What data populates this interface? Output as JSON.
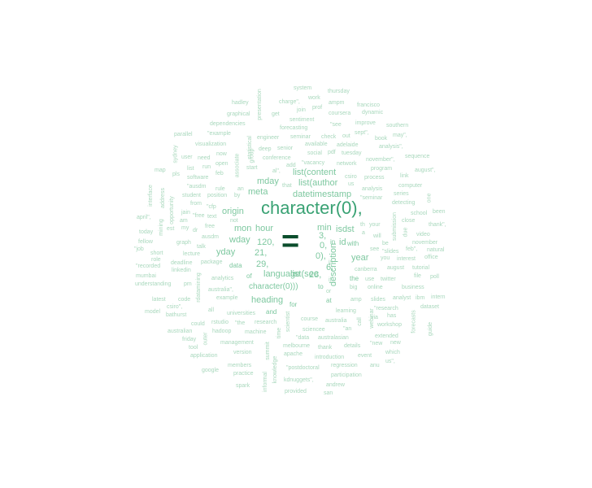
{
  "palette": {
    "background": "#ffffff",
    "small": "#a9d8bd",
    "mid": "#7ec8a0",
    "large": "#3aa274",
    "dark": "#0b4d2c"
  },
  "words": [
    {
      "text": "character(0),",
      "tier": "huge"
    },
    {
      "text": "=",
      "tier": "eq"
    },
    {
      "text": "list(content",
      "tier": "large"
    },
    {
      "text": "list(author",
      "tier": "large"
    },
    {
      "text": "datetimestamp",
      "tier": "large"
    },
    {
      "text": "mday",
      "tier": "large"
    },
    {
      "text": "meta",
      "tier": "large"
    },
    {
      "text": "origin",
      "tier": "large"
    },
    {
      "text": "mon",
      "tier": "large"
    },
    {
      "text": "hour",
      "tier": "large"
    },
    {
      "text": "wday",
      "tier": "large"
    },
    {
      "text": "yday",
      "tier": "large"
    },
    {
      "text": "120,",
      "tier": "large"
    },
    {
      "text": "21,",
      "tier": "large"
    },
    {
      "text": "29,",
      "tier": "large"
    },
    {
      "text": "language",
      "tier": "large"
    },
    {
      "text": "list(sec",
      "tier": "large"
    },
    {
      "text": "character(0)))",
      "tier": "large"
    },
    {
      "text": "heading",
      "tier": "large"
    },
    {
      "text": "min",
      "tier": "large"
    },
    {
      "text": "isdst",
      "tier": "large"
    },
    {
      "text": "description",
      "tier": "large"
    },
    {
      "text": "year",
      "tier": "large"
    },
    {
      "text": "28,",
      "tier": "large"
    },
    {
      "text": "3,",
      "tier": "large"
    },
    {
      "text": "0,",
      "tier": "large"
    },
    {
      "text": "0),",
      "tier": "large"
    },
    {
      "text": "6,",
      "tier": "large"
    },
    {
      "text": "id",
      "tier": "large"
    },
    {
      "text": "system",
      "tier": "small"
    },
    {
      "text": "thursday",
      "tier": "small"
    },
    {
      "text": "work",
      "tier": "small"
    },
    {
      "text": "ampm",
      "tier": "small"
    },
    {
      "text": "presentation",
      "tier": "small"
    },
    {
      "text": "hadley",
      "tier": "small"
    },
    {
      "text": "charge\",",
      "tier": "small"
    },
    {
      "text": "prof",
      "tier": "small"
    },
    {
      "text": "francisco",
      "tier": "small"
    },
    {
      "text": "graphical",
      "tier": "small"
    },
    {
      "text": "get",
      "tier": "small"
    },
    {
      "text": "join",
      "tier": "small"
    },
    {
      "text": "coursera",
      "tier": "small"
    },
    {
      "text": "dynamic",
      "tier": "small"
    },
    {
      "text": "dependencies",
      "tier": "small"
    },
    {
      "text": "sentiment",
      "tier": "small"
    },
    {
      "text": "forecasting",
      "tier": "small"
    },
    {
      "text": "\"see",
      "tier": "small"
    },
    {
      "text": "improve",
      "tier": "small"
    },
    {
      "text": "southern",
      "tier": "small"
    },
    {
      "text": "parallel",
      "tier": "small"
    },
    {
      "text": "\"example",
      "tier": "small"
    },
    {
      "text": "seminar",
      "tier": "small"
    },
    {
      "text": "check",
      "tier": "small"
    },
    {
      "text": "out",
      "tier": "small"
    },
    {
      "text": "sept\",",
      "tier": "small"
    },
    {
      "text": "book",
      "tier": "small"
    },
    {
      "text": "may\",",
      "tier": "small"
    },
    {
      "text": "visualization",
      "tier": "small"
    },
    {
      "text": "engineer",
      "tier": "small"
    },
    {
      "text": "available",
      "tier": "small"
    },
    {
      "text": "adelaide",
      "tier": "small"
    },
    {
      "text": "analysis\",",
      "tier": "small"
    },
    {
      "text": "sydney",
      "tier": "small"
    },
    {
      "text": "now",
      "tier": "small"
    },
    {
      "text": "deep",
      "tier": "small"
    },
    {
      "text": "senior",
      "tier": "small"
    },
    {
      "text": "social",
      "tier": "small"
    },
    {
      "text": "pdf",
      "tier": "small"
    },
    {
      "text": "tuesday",
      "tier": "small"
    },
    {
      "text": "user",
      "tier": "small"
    },
    {
      "text": "need",
      "tier": "small"
    },
    {
      "text": "conference",
      "tier": "small"
    },
    {
      "text": "november\",",
      "tier": "small"
    },
    {
      "text": "sequence",
      "tier": "small"
    },
    {
      "text": "statistical",
      "tier": "small"
    },
    {
      "text": "open",
      "tier": "small"
    },
    {
      "text": "add",
      "tier": "small"
    },
    {
      "text": "\"vacancy",
      "tier": "small"
    },
    {
      "text": "network",
      "tier": "small"
    },
    {
      "text": "program",
      "tier": "small"
    },
    {
      "text": "list",
      "tier": "small"
    },
    {
      "text": "run",
      "tier": "small"
    },
    {
      "text": "start",
      "tier": "small"
    },
    {
      "text": "al\",",
      "tier": "small"
    },
    {
      "text": "map",
      "tier": "small"
    },
    {
      "text": "associate",
      "tier": "small"
    },
    {
      "text": "august\",",
      "tier": "small"
    },
    {
      "text": "link",
      "tier": "small"
    },
    {
      "text": "pls",
      "tier": "small"
    },
    {
      "text": "software",
      "tier": "small"
    },
    {
      "text": "feb",
      "tier": "small"
    },
    {
      "text": "csiro",
      "tier": "small"
    },
    {
      "text": "process",
      "tier": "small"
    },
    {
      "text": "computer",
      "tier": "small"
    },
    {
      "text": "\"ausdm",
      "tier": "small"
    },
    {
      "text": "rule",
      "tier": "small"
    },
    {
      "text": "an",
      "tier": "small"
    },
    {
      "text": "that",
      "tier": "small"
    },
    {
      "text": "us",
      "tier": "small"
    },
    {
      "text": "analysis",
      "tier": "small"
    },
    {
      "text": "interface",
      "tier": "small"
    },
    {
      "text": "student",
      "tier": "small"
    },
    {
      "text": "position",
      "tier": "small"
    },
    {
      "text": "by",
      "tier": "small"
    },
    {
      "text": "series",
      "tier": "small"
    },
    {
      "text": "\"seminar",
      "tier": "small"
    },
    {
      "text": "address",
      "tier": "small"
    },
    {
      "text": "from",
      "tier": "small"
    },
    {
      "text": "\"cfp",
      "tier": "small"
    },
    {
      "text": "opportunity",
      "tier": "small"
    },
    {
      "text": "detecting",
      "tier": "small"
    },
    {
      "text": "jain",
      "tier": "small"
    },
    {
      "text": "\"free",
      "tier": "small"
    },
    {
      "text": "text",
      "tier": "small"
    },
    {
      "text": "april\",",
      "tier": "small"
    },
    {
      "text": "am",
      "tier": "small"
    },
    {
      "text": "school",
      "tier": "small"
    },
    {
      "text": "been",
      "tier": "small"
    },
    {
      "text": "free",
      "tier": "small"
    },
    {
      "text": "not",
      "tier": "small"
    },
    {
      "text": "close",
      "tier": "small"
    },
    {
      "text": "thank\",",
      "tier": "small"
    },
    {
      "text": "mining",
      "tier": "small"
    },
    {
      "text": "est",
      "tier": "small"
    },
    {
      "text": "my",
      "tier": "small"
    },
    {
      "text": "dr",
      "tier": "small"
    },
    {
      "text": "today",
      "tier": "small"
    },
    {
      "text": "will",
      "tier": "small"
    },
    {
      "text": "video",
      "tier": "small"
    },
    {
      "text": "ausdm",
      "tier": "small"
    },
    {
      "text": "graph",
      "tier": "small"
    },
    {
      "text": "fellow",
      "tier": "small"
    },
    {
      "text": "talk",
      "tier": "small"
    },
    {
      "text": "november",
      "tier": "small"
    },
    {
      "text": "\"job",
      "tier": "small"
    },
    {
      "text": "short",
      "tier": "small"
    },
    {
      "text": "lecture",
      "tier": "small"
    },
    {
      "text": "feb\",",
      "tier": "small"
    },
    {
      "text": "be",
      "tier": "small"
    },
    {
      "text": "\"slides",
      "tier": "small"
    },
    {
      "text": "natural",
      "tier": "small"
    },
    {
      "text": "role",
      "tier": "small"
    },
    {
      "text": "deadline",
      "tier": "small"
    },
    {
      "text": "package",
      "tier": "small"
    },
    {
      "text": "you",
      "tier": "small"
    },
    {
      "text": "interest",
      "tier": "small"
    },
    {
      "text": "office",
      "tier": "small"
    },
    {
      "text": "\"recorded",
      "tier": "small"
    },
    {
      "text": "linkedin",
      "tier": "small"
    },
    {
      "text": "canberra",
      "tier": "small"
    },
    {
      "text": "august",
      "tier": "small"
    },
    {
      "text": "tutorial",
      "tier": "small"
    },
    {
      "text": "mumbai",
      "tier": "small"
    },
    {
      "text": "file",
      "tier": "small"
    },
    {
      "text": "poll",
      "tier": "small"
    },
    {
      "text": "analytics",
      "tier": "small"
    },
    {
      "text": "use",
      "tier": "small"
    },
    {
      "text": "twitter",
      "tier": "small"
    },
    {
      "text": "understanding",
      "tier": "small"
    },
    {
      "text": "pm",
      "tier": "small"
    },
    {
      "text": "australia\",",
      "tier": "small"
    },
    {
      "text": "big",
      "tier": "small"
    },
    {
      "text": "online",
      "tier": "small"
    },
    {
      "text": "business",
      "tier": "small"
    },
    {
      "text": "latest",
      "tier": "small"
    },
    {
      "text": "code",
      "tier": "small"
    },
    {
      "text": "example",
      "tier": "small"
    },
    {
      "text": "amp",
      "tier": "small"
    },
    {
      "text": "slides",
      "tier": "small"
    },
    {
      "text": "analyst",
      "tier": "small"
    },
    {
      "text": "ibm",
      "tier": "small"
    },
    {
      "text": "intern",
      "tier": "small"
    },
    {
      "text": "csiro\",",
      "tier": "small"
    },
    {
      "text": "model",
      "tier": "small"
    },
    {
      "text": "all",
      "tier": "small"
    },
    {
      "text": "universities",
      "tier": "small"
    },
    {
      "text": "\"research",
      "tier": "small"
    },
    {
      "text": "dataset",
      "tier": "small"
    },
    {
      "text": "bathurst",
      "tier": "small"
    },
    {
      "text": "course",
      "tier": "small"
    },
    {
      "text": "learning",
      "tier": "small"
    },
    {
      "text": "has",
      "tier": "small"
    },
    {
      "text": "could",
      "tier": "small"
    },
    {
      "text": "rstudio",
      "tier": "small"
    },
    {
      "text": "\"the",
      "tier": "small"
    },
    {
      "text": "research",
      "tier": "small"
    },
    {
      "text": "australia",
      "tier": "small"
    },
    {
      "text": "via",
      "tier": "small"
    },
    {
      "text": "workshop",
      "tier": "small"
    },
    {
      "text": "australian",
      "tier": "small"
    },
    {
      "text": "hadoop",
      "tier": "small"
    },
    {
      "text": "machine",
      "tier": "small"
    },
    {
      "text": "sciencee",
      "tier": "small"
    },
    {
      "text": "\"an",
      "tier": "small"
    },
    {
      "text": "friday",
      "tier": "small"
    },
    {
      "text": "\"data",
      "tier": "small"
    },
    {
      "text": "australasian",
      "tier": "small"
    },
    {
      "text": "extended",
      "tier": "small"
    },
    {
      "text": "tool",
      "tier": "small"
    },
    {
      "text": "management",
      "tier": "small"
    },
    {
      "text": "melbourne",
      "tier": "small"
    },
    {
      "text": "thank",
      "tier": "small"
    },
    {
      "text": "details",
      "tier": "small"
    },
    {
      "text": "\"new",
      "tier": "small"
    },
    {
      "text": "new",
      "tier": "small"
    },
    {
      "text": "application",
      "tier": "small"
    },
    {
      "text": "version",
      "tier": "small"
    },
    {
      "text": "apache",
      "tier": "small"
    },
    {
      "text": "introduction",
      "tier": "small"
    },
    {
      "text": "event",
      "tier": "small"
    },
    {
      "text": "which",
      "tier": "small"
    },
    {
      "text": "members",
      "tier": "small"
    },
    {
      "text": "\"postdoctoral",
      "tier": "small"
    },
    {
      "text": "regression",
      "tier": "small"
    },
    {
      "text": "anu",
      "tier": "small"
    },
    {
      "text": "us\",",
      "tier": "small"
    },
    {
      "text": "google",
      "tier": "small"
    },
    {
      "text": "practice",
      "tier": "small"
    },
    {
      "text": "participation",
      "tier": "small"
    },
    {
      "text": "kdnuggets\",",
      "tier": "small"
    },
    {
      "text": "spark",
      "tier": "small"
    },
    {
      "text": "andrew",
      "tier": "small"
    },
    {
      "text": "provided",
      "tier": "small"
    },
    {
      "text": "san",
      "tier": "small"
    },
    {
      "text": "with",
      "tier": "small"
    },
    {
      "text": "in",
      "tier": "small"
    },
    {
      "text": "see",
      "tier": "small"
    },
    {
      "text": "the",
      "tier": "small"
    },
    {
      "text": "to",
      "tier": "small"
    },
    {
      "text": "or",
      "tier": "small"
    },
    {
      "text": "at",
      "tier": "small"
    },
    {
      "text": "is",
      "tier": "small"
    },
    {
      "text": "of",
      "tier": "small"
    },
    {
      "text": "for",
      "tier": "small"
    },
    {
      "text": "and",
      "tier": "small"
    },
    {
      "text": "data",
      "tier": "small"
    },
    {
      "text": "a",
      "tier": "small"
    },
    {
      "text": "th",
      "tier": "small"
    },
    {
      "text": "your",
      "tier": "small"
    },
    {
      "text": "if",
      "tier": "small"
    },
    {
      "text": "due",
      "tier": "small"
    },
    {
      "text": "submission",
      "tier": "small"
    },
    {
      "text": "forecasts",
      "tier": "small"
    },
    {
      "text": "guide",
      "tier": "small"
    },
    {
      "text": "summit",
      "tier": "small"
    },
    {
      "text": "informal",
      "tier": "small"
    },
    {
      "text": "knowledge",
      "tier": "small"
    },
    {
      "text": "time",
      "tier": "small"
    },
    {
      "text": "scientist",
      "tier": "small"
    },
    {
      "text": "webinar",
      "tier": "small"
    },
    {
      "text": "call",
      "tier": "small"
    },
    {
      "text": "rdatamining",
      "tier": "small"
    },
    {
      "text": "outer",
      "tier": "small"
    },
    {
      "text": "group",
      "tier": "small"
    },
    {
      "text": "one",
      "tier": "small"
    }
  ]
}
